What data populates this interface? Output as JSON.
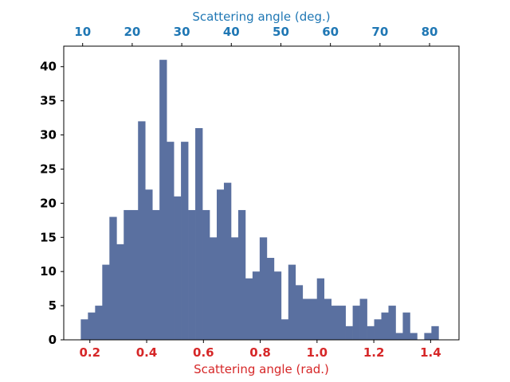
{
  "chart_data": {
    "type": "bar",
    "subtype": "histogram",
    "bar_color": "#5a70a0",
    "bin_width": 0.0252,
    "bin_starts": [
      0.168,
      0.1932,
      0.2184,
      0.2436,
      0.2688,
      0.294,
      0.3192,
      0.3444,
      0.3696,
      0.3948,
      0.42,
      0.4452,
      0.4704,
      0.4956,
      0.5208,
      0.546,
      0.5712,
      0.5964,
      0.6216,
      0.6468,
      0.672,
      0.6972,
      0.7224,
      0.7476,
      0.7728,
      0.798,
      0.8232,
      0.8484,
      0.8736,
      0.8988,
      0.924,
      0.9492,
      0.9744,
      0.9996,
      1.0248,
      1.05,
      1.0752,
      1.1004,
      1.1256,
      1.1508,
      1.176,
      1.2012,
      1.2264,
      1.2516,
      1.2768,
      1.302,
      1.3272,
      1.3524,
      1.3776,
      1.4028
    ],
    "values": [
      3,
      4,
      5,
      11,
      18,
      14,
      19,
      19,
      32,
      22,
      19,
      41,
      29,
      21,
      29,
      19,
      31,
      19,
      15,
      22,
      23,
      15,
      19,
      9,
      10,
      15,
      12,
      10,
      3,
      11,
      8,
      6,
      6,
      9,
      6,
      5,
      5,
      2,
      5,
      6,
      2,
      3,
      4,
      5,
      1,
      4,
      1,
      0,
      1,
      2
    ],
    "xlabel": "Scattering angle (rad.)",
    "secondary_xlabel": "Scattering angle (deg.)",
    "xlim": [
      0.108,
      1.5
    ],
    "ylim": [
      0,
      43
    ],
    "xticks": [
      0.2,
      0.4,
      0.6,
      0.8,
      1.0,
      1.2,
      1.4
    ],
    "xtick_labels": [
      "0.2",
      "0.4",
      "0.6",
      "0.8",
      "1.0",
      "1.2",
      "1.4"
    ],
    "secondary_xticks": [
      10,
      20,
      30,
      40,
      50,
      60,
      70,
      80
    ],
    "secondary_xtick_labels": [
      "10",
      "20",
      "30",
      "40",
      "50",
      "60",
      "70",
      "80"
    ],
    "yticks": [
      0,
      5,
      10,
      15,
      20,
      25,
      30,
      35,
      40
    ],
    "ytick_labels": [
      "0",
      "5",
      "10",
      "15",
      "20",
      "25",
      "30",
      "35",
      "40"
    ],
    "grid": false,
    "bottom_axis_color": "#d62728",
    "top_axis_color": "#1f77b4"
  }
}
